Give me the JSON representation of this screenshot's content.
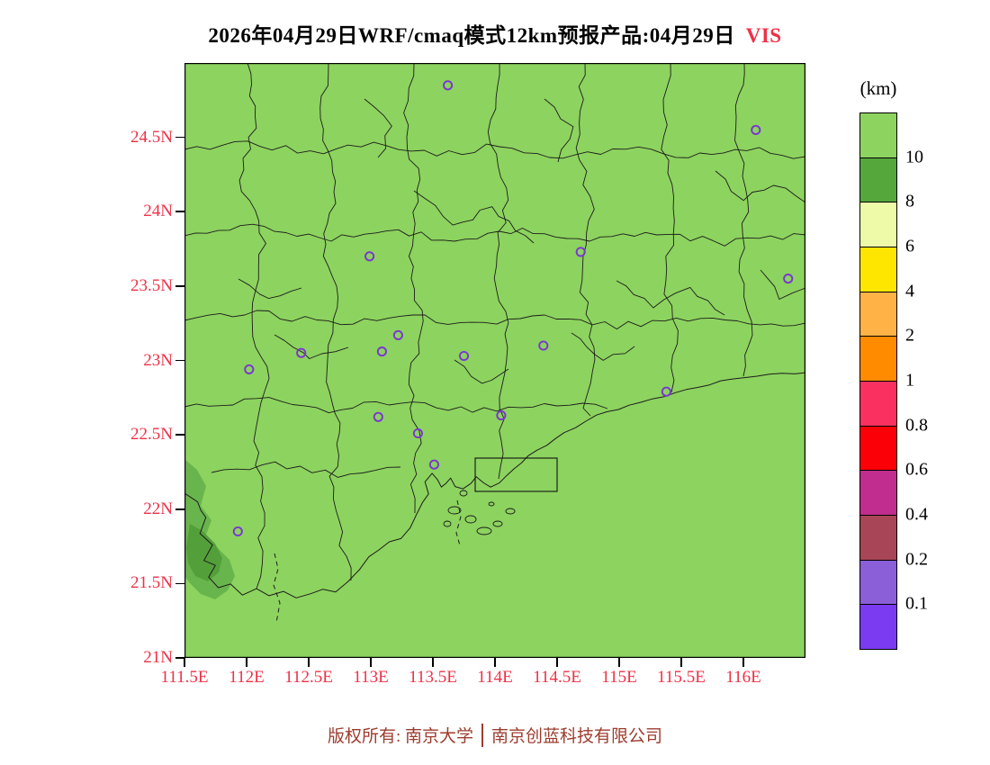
{
  "title": {
    "main": "2026年04月29日WRF/cmaq模式12km预报产品:04月29日",
    "highlight": "VIS",
    "highlight_color": "#ee3147"
  },
  "axes": {
    "label_color": "#ee3147"
  },
  "map": {
    "lon_range": [
      111.5,
      116.5
    ],
    "lat_range": [
      21.0,
      25.0
    ],
    "lat_ticks": [
      {
        "value": 24.5,
        "label": "24.5N"
      },
      {
        "value": 24.0,
        "label": "24N"
      },
      {
        "value": 23.5,
        "label": "23.5N"
      },
      {
        "value": 23.0,
        "label": "23N"
      },
      {
        "value": 22.5,
        "label": "22.5N"
      },
      {
        "value": 22.0,
        "label": "22N"
      },
      {
        "value": 21.5,
        "label": "21.5N"
      },
      {
        "value": 21.0,
        "label": "21N"
      }
    ],
    "lon_ticks": [
      {
        "value": 111.5,
        "label": "111.5E"
      },
      {
        "value": 112.0,
        "label": "112E"
      },
      {
        "value": 112.5,
        "label": "112.5E"
      },
      {
        "value": 113.0,
        "label": "113E"
      },
      {
        "value": 113.5,
        "label": "113.5E"
      },
      {
        "value": 114.0,
        "label": "114E"
      },
      {
        "value": 114.5,
        "label": "114.5E"
      },
      {
        "value": 115.0,
        "label": "115E"
      },
      {
        "value": 115.5,
        "label": "115.5E"
      },
      {
        "value": 116.0,
        "label": "116E"
      }
    ],
    "background_color": "#8dd35f",
    "boundary_color": "#1c1c1c",
    "marker_color": "#7a35d2",
    "markers": [
      {
        "lon": 113.62,
        "lat": 24.85
      },
      {
        "lon": 116.1,
        "lat": 24.55
      },
      {
        "lon": 112.99,
        "lat": 23.7
      },
      {
        "lon": 114.69,
        "lat": 23.73
      },
      {
        "lon": 116.36,
        "lat": 23.55
      },
      {
        "lon": 113.22,
        "lat": 23.17
      },
      {
        "lon": 113.09,
        "lat": 23.06
      },
      {
        "lon": 112.44,
        "lat": 23.05
      },
      {
        "lon": 113.75,
        "lat": 23.03
      },
      {
        "lon": 114.39,
        "lat": 23.1
      },
      {
        "lon": 112.02,
        "lat": 22.94
      },
      {
        "lon": 115.38,
        "lat": 22.79
      },
      {
        "lon": 113.06,
        "lat": 22.62
      },
      {
        "lon": 114.05,
        "lat": 22.63
      },
      {
        "lon": 113.38,
        "lat": 22.51
      },
      {
        "lon": 113.51,
        "lat": 22.3
      },
      {
        "lon": 111.93,
        "lat": 21.85
      }
    ],
    "patches": [
      {
        "range_km": "8-10",
        "color": "#69b54d"
      },
      {
        "range_km": "10",
        "color": "#539f3a"
      }
    ]
  },
  "colorbar": {
    "title": "(km)",
    "cells": [
      "#8dd35f",
      "#55a73c",
      "#eefaa8",
      "#ffe600",
      "#ffb347",
      "#ff8c00",
      "#fa3160",
      "#fb0007",
      "#c02d8e",
      "#a84657",
      "#8b5fd8",
      "#7b3bf0"
    ],
    "ticks": [
      "10",
      "8",
      "6",
      "4",
      "2",
      "1",
      "0.8",
      "0.6",
      "0.4",
      "0.2",
      "0.1"
    ]
  },
  "footer": {
    "left": "版权所有: 南京大学",
    "right": "南京创蓝科技有限公司",
    "color": "#9c3c2e"
  }
}
